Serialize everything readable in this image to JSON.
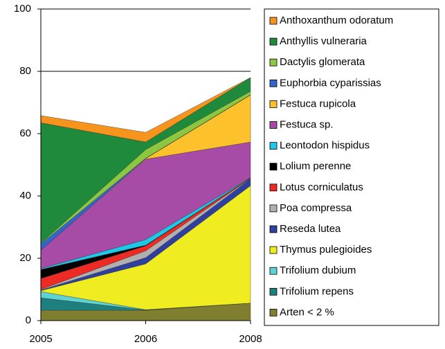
{
  "chart_data": {
    "type": "stacked_area",
    "categories": [
      "2005",
      "2006",
      "2008"
    ],
    "ylim": [
      0,
      100
    ],
    "yticks": [
      0,
      20,
      40,
      60,
      80,
      100
    ],
    "grid": true,
    "series": [
      {
        "name": "Arten < 2 %",
        "color": "#7f7f2f",
        "values": [
          3.3,
          3.3,
          5.6
        ]
      },
      {
        "name": "Trifolium repens",
        "color": "#1e7f7f",
        "values": [
          4.0,
          0.1,
          0
        ]
      },
      {
        "name": "Trifolium dubium",
        "color": "#5fd3d3",
        "values": [
          2.0,
          0.1,
          0
        ]
      },
      {
        "name": "Thymus pulegioides",
        "color": "#f0ec22",
        "values": [
          0.3,
          14.7,
          37.7
        ]
      },
      {
        "name": "Reseda lutea",
        "color": "#2e3f9e",
        "values": [
          0.2,
          2.0,
          2.2
        ]
      },
      {
        "name": "Poa compressa",
        "color": "#b0b0b0",
        "values": [
          0.2,
          2.2,
          0.1
        ]
      },
      {
        "name": "Lotus corniculatus",
        "color": "#ee2a24",
        "values": [
          3.5,
          1.6,
          0.1
        ]
      },
      {
        "name": "Lolium perenne",
        "color": "#000000",
        "values": [
          2.9,
          0.2,
          0.1
        ]
      },
      {
        "name": "Leontodon hispidus",
        "color": "#1ec8e8",
        "values": [
          0.3,
          1.8,
          0.1
        ]
      },
      {
        "name": "Festuca sp.",
        "color": "#a64ca6",
        "values": [
          5.9,
          25.8,
          11.4
        ]
      },
      {
        "name": "Festuca rupicola",
        "color": "#fdc12c",
        "values": [
          0,
          0.2,
          15.1
        ]
      },
      {
        "name": "Euphorbia cyparissias",
        "color": "#3366cc",
        "values": [
          2.0,
          0.1,
          0.1
        ]
      },
      {
        "name": "Dactylis glomerata",
        "color": "#8dc63f",
        "values": [
          0.2,
          2.8,
          1.1
        ]
      },
      {
        "name": "Anthyllis vulneraria",
        "color": "#1f8a3c",
        "values": [
          38.7,
          2.4,
          4.4
        ]
      },
      {
        "name": "Anthoxanthum odoratum",
        "color": "#f7941d",
        "values": [
          2.3,
          3.1,
          0
        ]
      }
    ]
  }
}
